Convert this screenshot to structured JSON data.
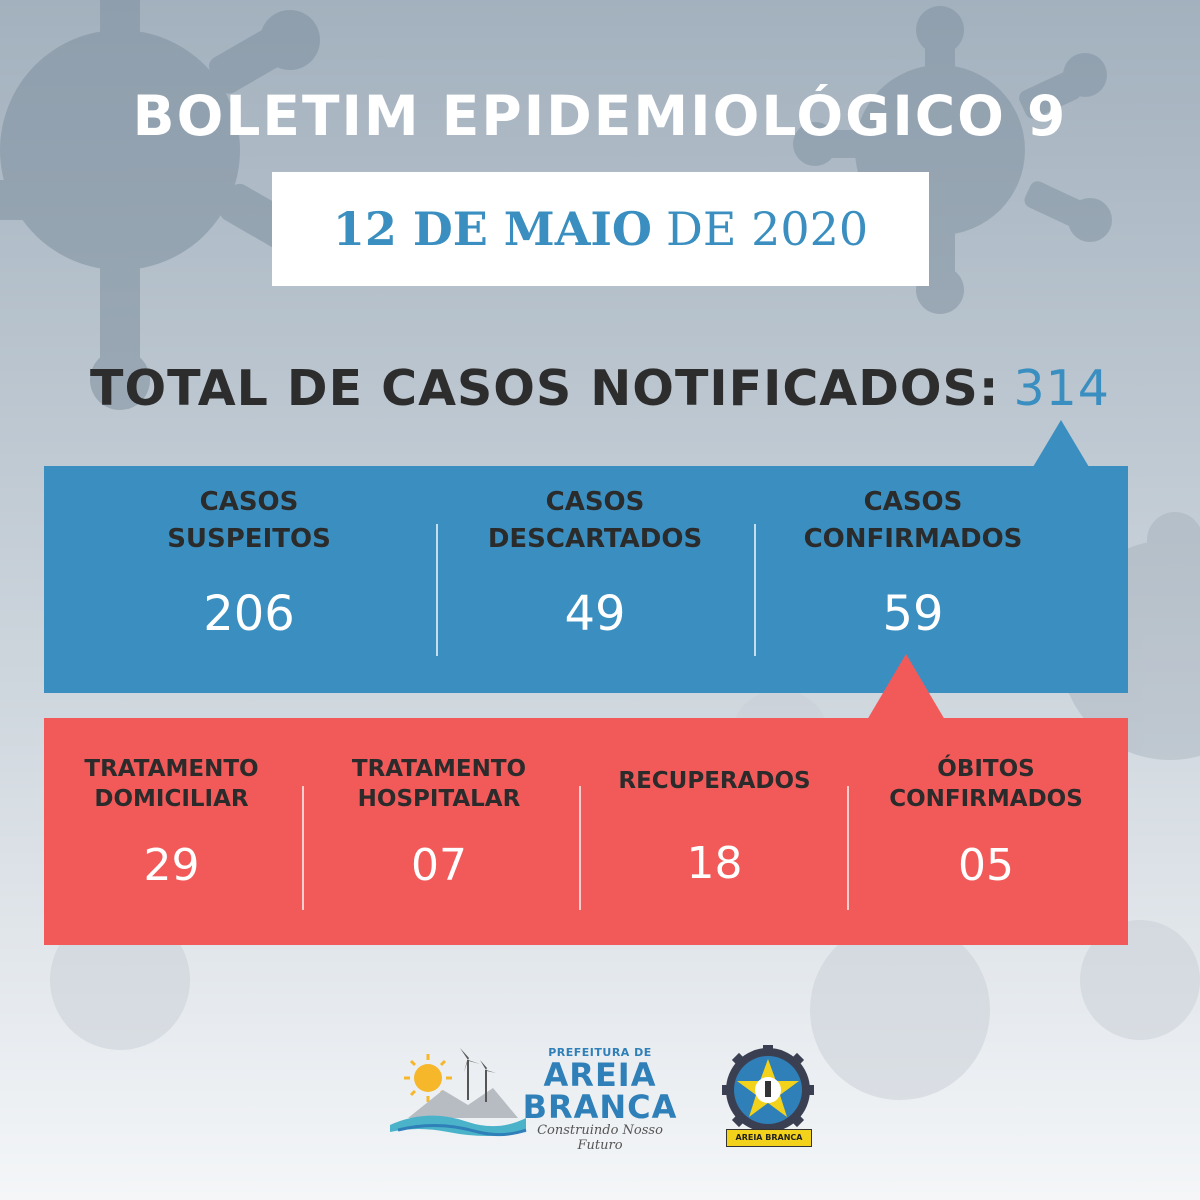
{
  "header": {
    "title": "BOLETIM EPIDEMIOLÓGICO 9",
    "date_bold": "12 DE MAIO",
    "date_light": "DE 2020"
  },
  "total": {
    "label": "TOTAL DE CASOS NOTIFICADOS:",
    "value": "314"
  },
  "cases": [
    {
      "line1": "CASOS",
      "line2": "SUSPEITOS",
      "value": "206"
    },
    {
      "line1": "CASOS",
      "line2": "DESCARTADOS",
      "value": "49"
    },
    {
      "line1": "CASOS",
      "line2": "CONFIRMADOS",
      "value": "59"
    }
  ],
  "confirmed_breakdown": [
    {
      "line1": "TRATAMENTO",
      "line2": "DOMICILIAR",
      "value": "29"
    },
    {
      "line1": "TRATAMENTO",
      "line2": "HOSPITALAR",
      "value": "07"
    },
    {
      "line1": "RECUPERADOS",
      "line2": "",
      "value": "18"
    },
    {
      "line1": "ÓBITOS",
      "line2": "CONFIRMADOS",
      "value": "05"
    }
  ],
  "footer": {
    "prefeitura_small": "PREFEITURA DE",
    "city_line1": "AREIA",
    "city_line2": "BRANCA",
    "slogan": "Construindo Nosso Futuro",
    "seal_text": "AREIA BRANCA"
  },
  "colors": {
    "blue": "#3a8fc0",
    "red": "#f25a5a",
    "dark_text": "#2d2d2d"
  }
}
